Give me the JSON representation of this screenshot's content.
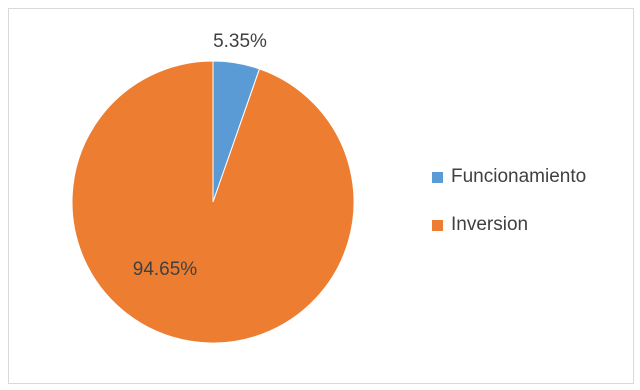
{
  "chart_data": {
    "type": "pie",
    "categories": [
      "Funcionamiento",
      "Inversion"
    ],
    "values": [
      5.35,
      94.65
    ],
    "value_labels": [
      "5.35%",
      "94.65%"
    ],
    "colors": [
      "#5B9BD5",
      "#ED7D31"
    ],
    "start_angle_deg": 0,
    "direction": "clockwise",
    "title": "",
    "legend_position": "right"
  },
  "legend": {
    "items": [
      {
        "label": "Funcionamiento",
        "color": "#5B9BD5"
      },
      {
        "label": "Inversion",
        "color": "#ED7D31"
      }
    ]
  }
}
